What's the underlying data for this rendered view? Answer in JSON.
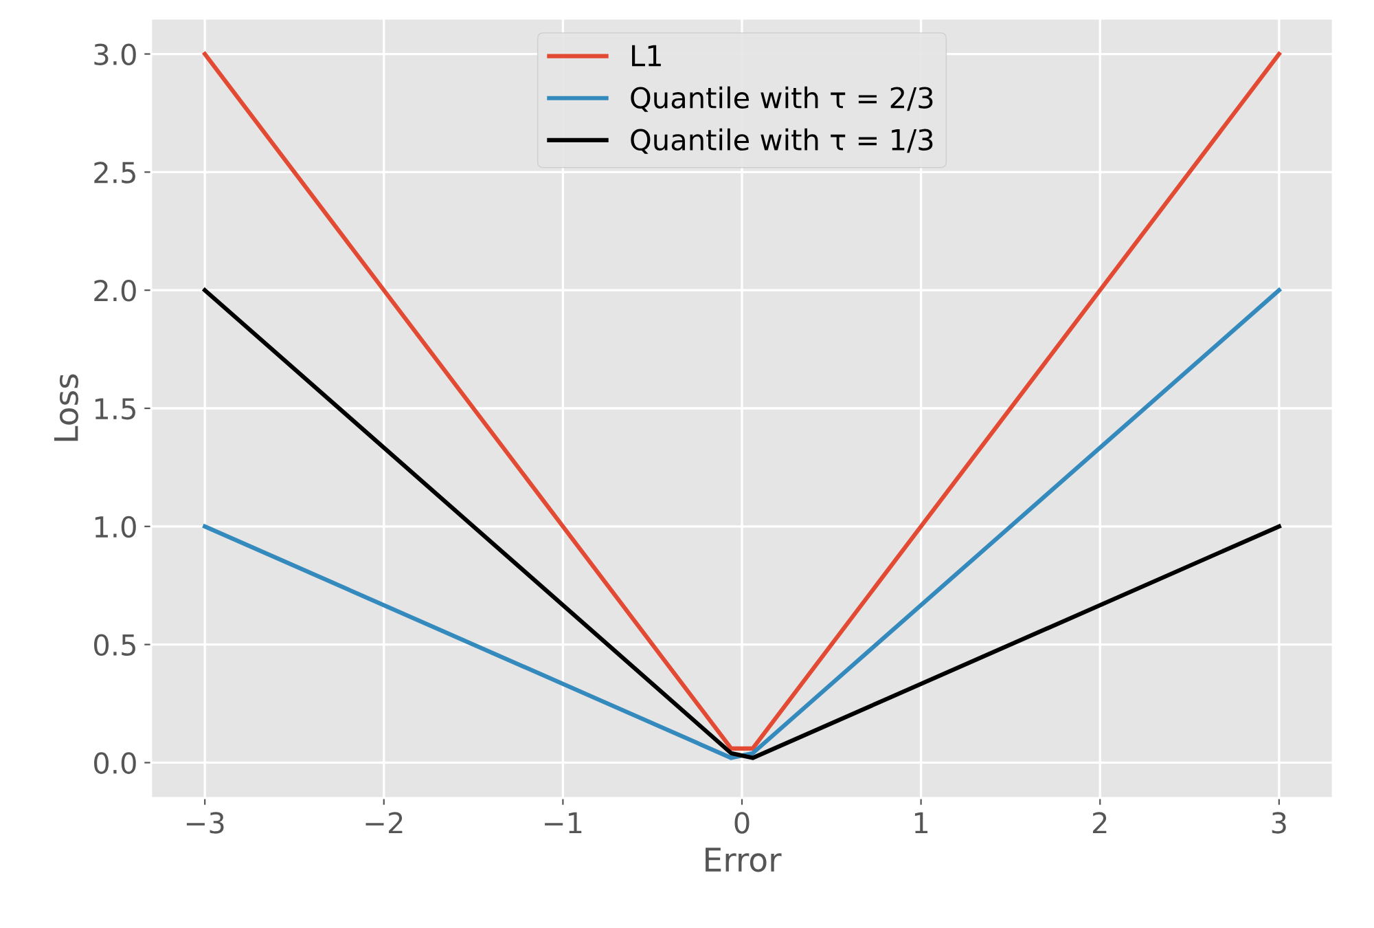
{
  "chart_data": {
    "type": "line",
    "xlabel": "Error",
    "ylabel": "Loss",
    "x": [
      -3,
      -0.06,
      0.06,
      3
    ],
    "series": [
      {
        "name": "L1",
        "color": "#e24a33",
        "values": [
          3,
          0.06,
          0.06,
          3
        ]
      },
      {
        "name": "Quantile with τ = 2/3",
        "color": "#348abd",
        "values": [
          1,
          0.02,
          0.04,
          2
        ]
      },
      {
        "name": "Quantile with τ = 1/3",
        "color": "#000000",
        "values": [
          2,
          0.04,
          0.02,
          1
        ]
      }
    ],
    "xlim": [
      -3.3,
      3.3
    ],
    "ylim": [
      -0.15,
      3.15
    ],
    "xticks": [
      {
        "value": -3,
        "label": "−3"
      },
      {
        "value": -2,
        "label": "−2"
      },
      {
        "value": -1,
        "label": "−1"
      },
      0,
      1,
      2,
      3
    ],
    "yticks": [
      {
        "value": 0,
        "label": "0.0"
      },
      {
        "value": 0.5,
        "label": "0.5"
      },
      {
        "value": 1,
        "label": "1.0"
      },
      {
        "value": 1.5,
        "label": "1.5"
      },
      {
        "value": 2,
        "label": "2.0"
      },
      {
        "value": 2.5,
        "label": "2.5"
      },
      {
        "value": 3,
        "label": "3.0"
      }
    ],
    "grid": true,
    "legend": "top"
  }
}
